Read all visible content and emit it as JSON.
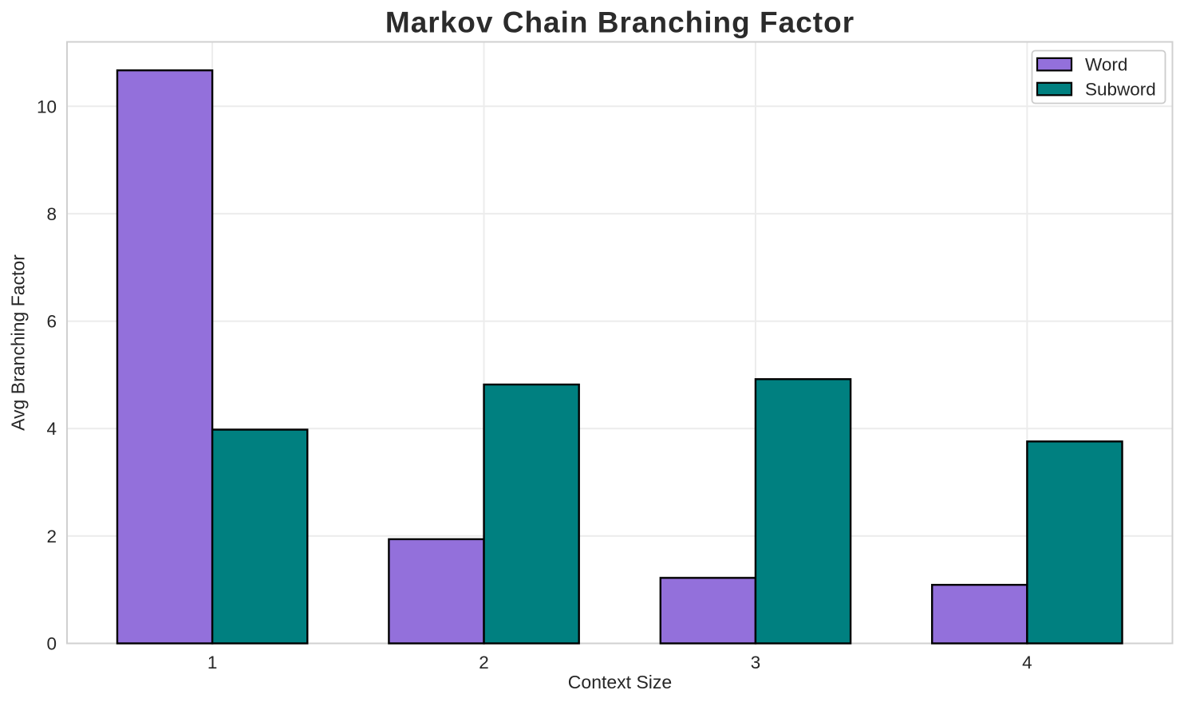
{
  "chart_data": {
    "type": "bar",
    "title": "Markov Chain Branching Factor",
    "xlabel": "Context Size",
    "ylabel": "Avg Branching Factor",
    "categories": [
      "1",
      "2",
      "3",
      "4"
    ],
    "series": [
      {
        "name": "Word",
        "color": "#9370db",
        "values": [
          10.67,
          1.94,
          1.22,
          1.09
        ]
      },
      {
        "name": "Subword",
        "color": "#008080",
        "values": [
          3.98,
          4.82,
          4.92,
          3.76
        ]
      }
    ],
    "x_positions": [
      1,
      2,
      3,
      4
    ],
    "bar_width": 0.35,
    "xlim": [
      0.465,
      4.535
    ],
    "ylim": [
      0,
      11.2
    ],
    "yticks": [
      0,
      2,
      4,
      6,
      8,
      10
    ],
    "grid": true,
    "legend_position": "upper right",
    "legend_labels": [
      "Word",
      "Subword"
    ]
  },
  "style": {
    "background_color": "#ffffff",
    "bar_edge_color": "#000000",
    "grid_color": "#ececec",
    "spine_color": "#d0d0d0",
    "text_color": "#262626",
    "title_color": "#2b2b2b",
    "legend_border_color": "#cccccc",
    "legend_background": "#ffffff"
  }
}
